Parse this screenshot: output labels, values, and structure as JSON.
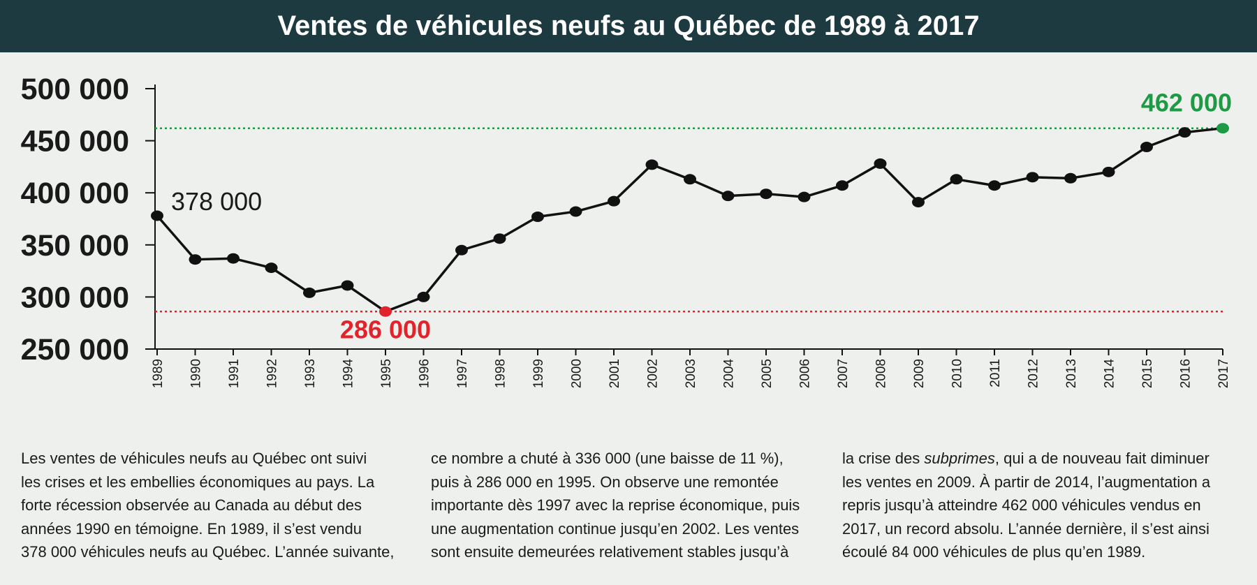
{
  "title": "Ventes de véhicules neufs au Québec de 1989 à 2017",
  "colors": {
    "header_bg": "#1c3a40",
    "line": "#111111",
    "min": "#e3232b",
    "max": "#1c9a44"
  },
  "chart_data": {
    "type": "line",
    "title": "Ventes de véhicules neufs au Québec de 1989 à 2017",
    "xlabel": "",
    "ylabel": "",
    "ylim": [
      250000,
      500000
    ],
    "y_ticks": [
      "250 000",
      "300 000",
      "350 000",
      "400 000",
      "450 000",
      "500 000"
    ],
    "y_tick_values": [
      250000,
      300000,
      350000,
      400000,
      450000,
      500000
    ],
    "x": [
      "1989",
      "1990",
      "1991",
      "1992",
      "1993",
      "1994",
      "1995",
      "1996",
      "1997",
      "1998",
      "1999",
      "2000",
      "2001",
      "2002",
      "2003",
      "2004",
      "2005",
      "2006",
      "2007",
      "2008",
      "2009",
      "2010",
      "2011",
      "2012",
      "2013",
      "2014",
      "2015",
      "2016",
      "2017"
    ],
    "series": [
      {
        "values": [
          378000,
          336000,
          337000,
          328000,
          304000,
          311000,
          286000,
          300000,
          345000,
          356000,
          377000,
          382000,
          392000,
          427000,
          413000,
          397000,
          399000,
          396000,
          407000,
          428000,
          391000,
          413000,
          407000,
          415000,
          414000,
          420000,
          444000,
          458000,
          462000
        ]
      }
    ],
    "annotations": {
      "first": "378 000",
      "min": "286 000",
      "max": "462 000"
    },
    "reference_lines": [
      {
        "value": 286000,
        "color": "#e3232b",
        "style": "dotted"
      },
      {
        "value": 462000,
        "color": "#1c9a44",
        "style": "dotted"
      }
    ],
    "grid": false
  },
  "text": {
    "col1": "Les ventes de véhicules neufs au Québec ont suivi\nles crises et les embellies économiques au pays. La\nforte récession observée au Canada au début des\nannées 1990 en témoigne. En 1989, il s’est vendu\n378 000 véhicules neufs au Québec. L’année suivante,",
    "col2": "ce nombre a chuté à 336 000 (une baisse de 11 %),\npuis à 286 000 en 1995. On observe une remontée\nimportante dès 1997 avec la reprise économique, puis\nune augmentation continue jusqu’en 2002. Les ventes\nsont ensuite demeurées relativement stables jusqu’à",
    "col3_before": "la crise des ",
    "col3_italic": "subprimes",
    "col3_after": ", qui a de nouveau fait diminuer\nles ventes en 2009. À partir de 2014, l’augmentation a\nrepris jusqu’à atteindre 462 000 véhicules vendus en\n2017, un record absolu. L’année dernière, il s’est ainsi\nécoulé 84 000 véhicules de plus qu’en 1989."
  }
}
